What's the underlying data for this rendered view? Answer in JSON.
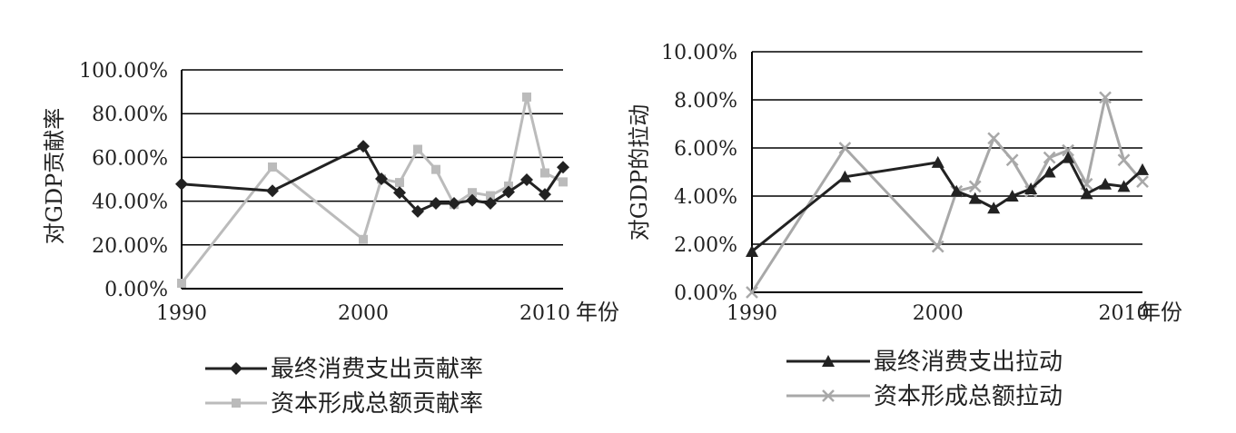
{
  "chart_data": [
    {
      "type": "line",
      "ylabel": "对GDP贡献率",
      "xlabel": "年份",
      "x_ticks": [
        "1990",
        "2000",
        "2010"
      ],
      "y_ticks": [
        "0.00%",
        "20.00%",
        "40.00%",
        "60.00%",
        "80.00%",
        "100.00%"
      ],
      "xlim": [
        1990,
        2011
      ],
      "ylim": [
        0,
        100
      ],
      "grid": true,
      "legend_position": "bottom",
      "colors": {
        "consumption": "#222222",
        "capital": "#bbbbbb"
      },
      "series": [
        {
          "name": "最终消费支出贡献率",
          "marker": "diamond",
          "x": [
            1990,
            1995,
            2000,
            2001,
            2002,
            2003,
            2004,
            2005,
            2006,
            2007,
            2008,
            2009,
            2010,
            2011
          ],
          "y": [
            47.8,
            44.7,
            65.1,
            50.2,
            43.9,
            35.3,
            39.0,
            39.0,
            40.4,
            39.0,
            44.2,
            49.8,
            43.1,
            55.5
          ]
        },
        {
          "name": "资本形成总额贡献率",
          "marker": "square",
          "x": [
            1990,
            1995,
            2000,
            2001,
            2002,
            2003,
            2004,
            2005,
            2006,
            2007,
            2008,
            2009,
            2010,
            2011
          ],
          "y": [
            2.5,
            55.6,
            22.5,
            50.1,
            48.5,
            63.7,
            54.5,
            38.5,
            43.9,
            42.5,
            46.9,
            87.6,
            52.9,
            48.8
          ]
        }
      ]
    },
    {
      "type": "line",
      "ylabel": "对GDP的拉动",
      "xlabel": "年份",
      "x_ticks": [
        "1990",
        "2000",
        "2010"
      ],
      "y_ticks": [
        "0.00%",
        "2.00%",
        "4.00%",
        "6.00%",
        "8.00%",
        "10.00%"
      ],
      "xlim": [
        1990,
        2011
      ],
      "ylim": [
        0,
        10
      ],
      "grid": true,
      "legend_position": "bottom",
      "colors": {
        "consumption": "#222222",
        "capital": "#a8a8a8"
      },
      "series": [
        {
          "name": "最终消费支出拉动",
          "marker": "triangle",
          "x": [
            1990,
            1995,
            2000,
            2001,
            2002,
            2003,
            2004,
            2005,
            2006,
            2007,
            2008,
            2009,
            2010,
            2011
          ],
          "y": [
            1.7,
            4.8,
            5.4,
            4.2,
            3.9,
            3.5,
            4.0,
            4.3,
            5.0,
            5.6,
            4.1,
            4.5,
            4.4,
            5.1
          ]
        },
        {
          "name": "资本形成总额拉动",
          "marker": "x",
          "x": [
            1990,
            1995,
            2000,
            2001,
            2002,
            2003,
            2004,
            2005,
            2006,
            2007,
            2008,
            2009,
            2010,
            2011
          ],
          "y": [
            0.0,
            6.0,
            1.9,
            4.2,
            4.4,
            6.4,
            5.5,
            4.2,
            5.6,
            5.9,
            4.5,
            8.1,
            5.5,
            4.6
          ]
        }
      ]
    }
  ]
}
